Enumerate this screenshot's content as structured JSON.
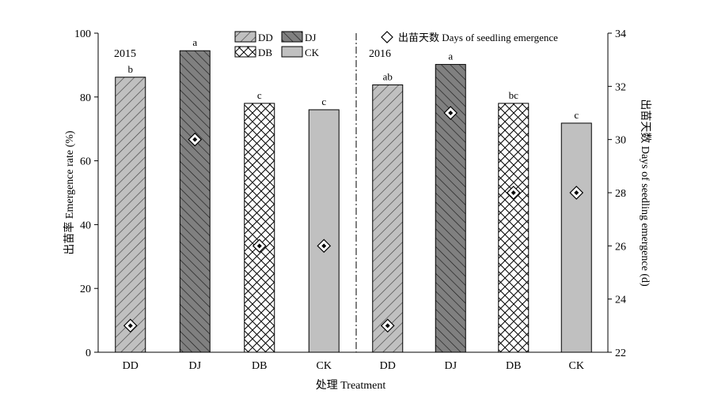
{
  "chart_data": {
    "type": "bar",
    "xlabel": "处理 Treatment",
    "ylabel": "出苗率 Emergence rate (%)",
    "y2label": "出苗天数 Days of seedling emergence (d)",
    "ylim": [
      0,
      100
    ],
    "yticks": [
      "0",
      "20",
      "40",
      "60",
      "80",
      "100"
    ],
    "y2lim": [
      22,
      34
    ],
    "y2ticks": [
      "22",
      "24",
      "26",
      "28",
      "30",
      "32",
      "34"
    ],
    "grid": false,
    "legend_position": "top-center",
    "legend_bars": [
      "DD",
      "DJ",
      "DB",
      "CK"
    ],
    "legend_marker_label": "出苗天数 Days of seedling emergence",
    "groups": [
      {
        "year": "2015",
        "categories": [
          "DD",
          "DJ",
          "DB",
          "CK"
        ],
        "emergence_rate": [
          86.2,
          94.5,
          78,
          76
        ],
        "significance": [
          "b",
          "a",
          "c",
          "c"
        ],
        "days": [
          23,
          30,
          26,
          26
        ]
      },
      {
        "year": "2016",
        "categories": [
          "DD",
          "DJ",
          "DB",
          "CK"
        ],
        "emergence_rate": [
          83.8,
          90.2,
          78,
          71.8
        ],
        "significance": [
          "ab",
          "a",
          "bc",
          "c"
        ],
        "days": [
          23,
          31,
          28,
          28
        ]
      }
    ],
    "colors": {
      "DD": "#c0c0c0",
      "DJ": "#808080",
      "DB": "#ffffff",
      "CK": "#c0c0c0",
      "marker": "#ffffff",
      "axis": "#000000"
    }
  }
}
